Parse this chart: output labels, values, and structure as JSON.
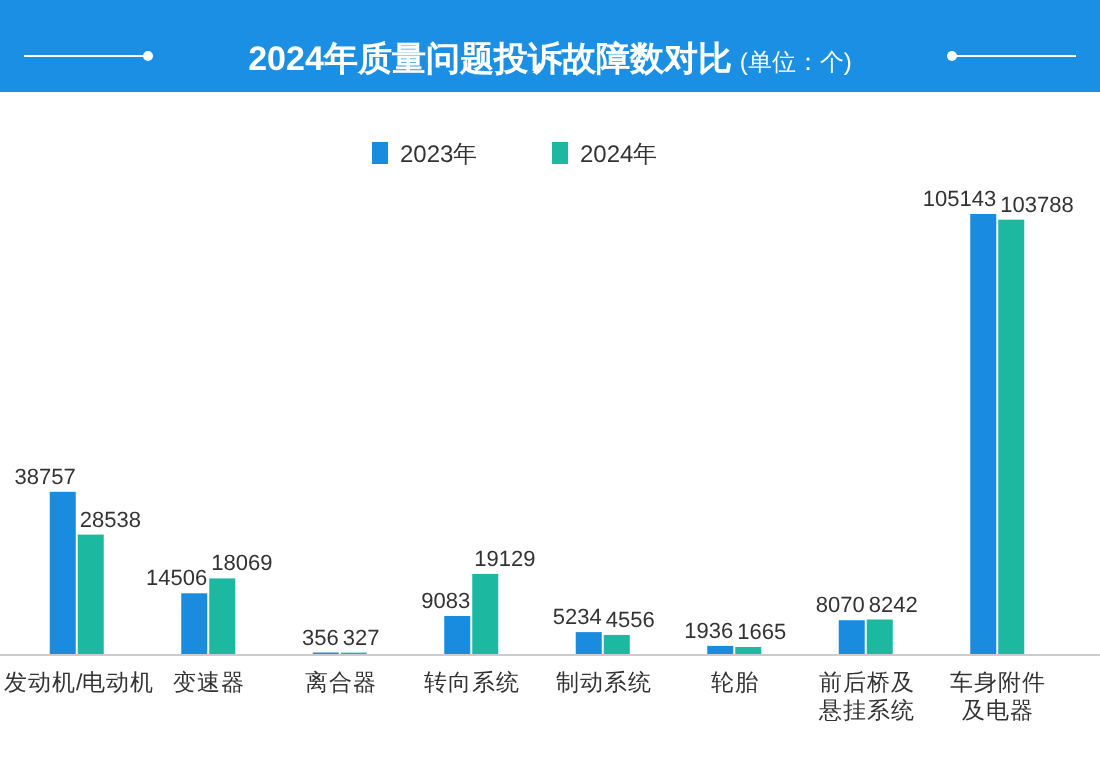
{
  "chart_data": {
    "type": "bar",
    "title": "2024年质量问题投诉故障数对比",
    "subtitle": "(单位：个)",
    "categories": [
      "发动机/电动机",
      "变速器",
      "离合器",
      "转向系统",
      "制动系统",
      "轮胎",
      "前后桥及悬挂系统",
      "车身附件及电器"
    ],
    "series": [
      {
        "name": "2023年",
        "color": "#1a8ce0",
        "values": [
          38757,
          14506,
          356,
          9083,
          5234,
          1936,
          8070,
          105143
        ]
      },
      {
        "name": "2024年",
        "color": "#1cb8a0",
        "values": [
          28538,
          18069,
          327,
          19129,
          4556,
          1665,
          8242,
          103788
        ]
      }
    ],
    "data_labels": true,
    "legend": "top",
    "tick_labels": "x"
  }
}
